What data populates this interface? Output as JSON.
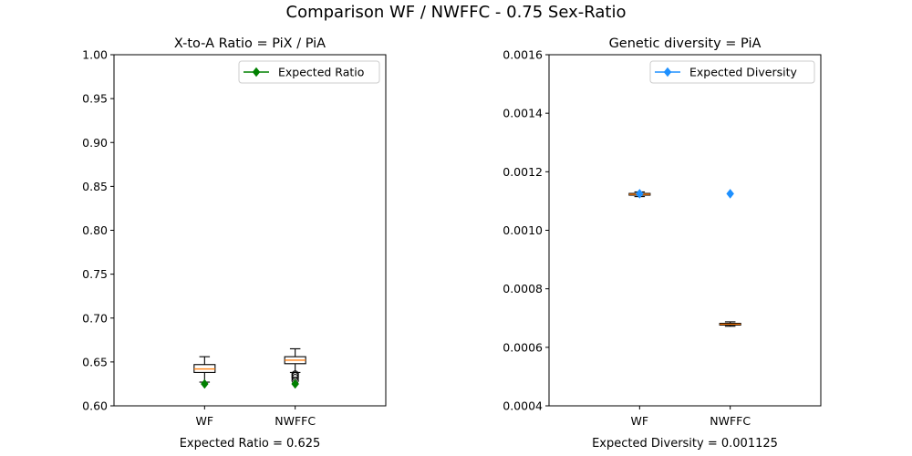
{
  "figure": {
    "title": "Comparison WF / NWFFC - 0.75 Sex-Ratio"
  },
  "chart_data": [
    {
      "type": "box",
      "title": "X-to-A Ratio = PiX / PiA",
      "xlabel": "Expected Ratio = 0.625",
      "ylabel": "",
      "categories": [
        "WF",
        "NWFFC"
      ],
      "ylim": [
        0.6,
        1.0
      ],
      "yticks": [
        "0.60",
        "0.65",
        "0.70",
        "0.75",
        "0.80",
        "0.85",
        "0.90",
        "0.95",
        "1.00"
      ],
      "ytick_values": [
        0.6,
        0.65,
        0.7,
        0.75,
        0.8,
        0.85,
        0.9,
        0.95,
        1.0
      ],
      "boxes": [
        {
          "category": "WF",
          "whisker_low": 0.627,
          "q1": 0.638,
          "median": 0.642,
          "q3": 0.647,
          "whisker_high": 0.656,
          "outliers": []
        },
        {
          "category": "NWFFC",
          "whisker_low": 0.638,
          "q1": 0.648,
          "median": 0.652,
          "q3": 0.656,
          "whisker_high": 0.665,
          "outliers": [
            0.636,
            0.634,
            0.632,
            0.629
          ]
        }
      ],
      "expected": {
        "name": "Expected Ratio",
        "values": [
          0.625,
          0.625
        ],
        "color": "#008000",
        "marker": "diamond"
      },
      "box_color": "#000000",
      "median_color": "#ff7f0e",
      "legend": "top-right",
      "grid": false
    },
    {
      "type": "box",
      "title": "Genetic diversity = PiA",
      "xlabel": "Expected Diversity = 0.001125",
      "ylabel": "",
      "categories": [
        "WF",
        "NWFFC"
      ],
      "ylim": [
        0.0004,
        0.0016
      ],
      "yticks": [
        "0.0004",
        "0.0006",
        "0.0008",
        "0.0010",
        "0.0012",
        "0.0014",
        "0.0016"
      ],
      "ytick_values": [
        0.0004,
        0.0006,
        0.0008,
        0.001,
        0.0012,
        0.0014,
        0.0016
      ],
      "boxes": [
        {
          "category": "WF",
          "whisker_low": 0.001115,
          "q1": 0.00112,
          "median": 0.001123,
          "q3": 0.001126,
          "whisker_high": 0.001131,
          "outliers": []
        },
        {
          "category": "NWFFC",
          "whisker_low": 0.000672,
          "q1": 0.000676,
          "median": 0.000679,
          "q3": 0.000682,
          "whisker_high": 0.000687,
          "outliers": []
        }
      ],
      "expected": {
        "name": "Expected Diversity",
        "values": [
          0.001125,
          0.001125
        ],
        "color": "#1e90ff",
        "marker": "diamond"
      },
      "box_color": "#000000",
      "median_color": "#ff7f0e",
      "legend": "top-right",
      "grid": false
    }
  ]
}
